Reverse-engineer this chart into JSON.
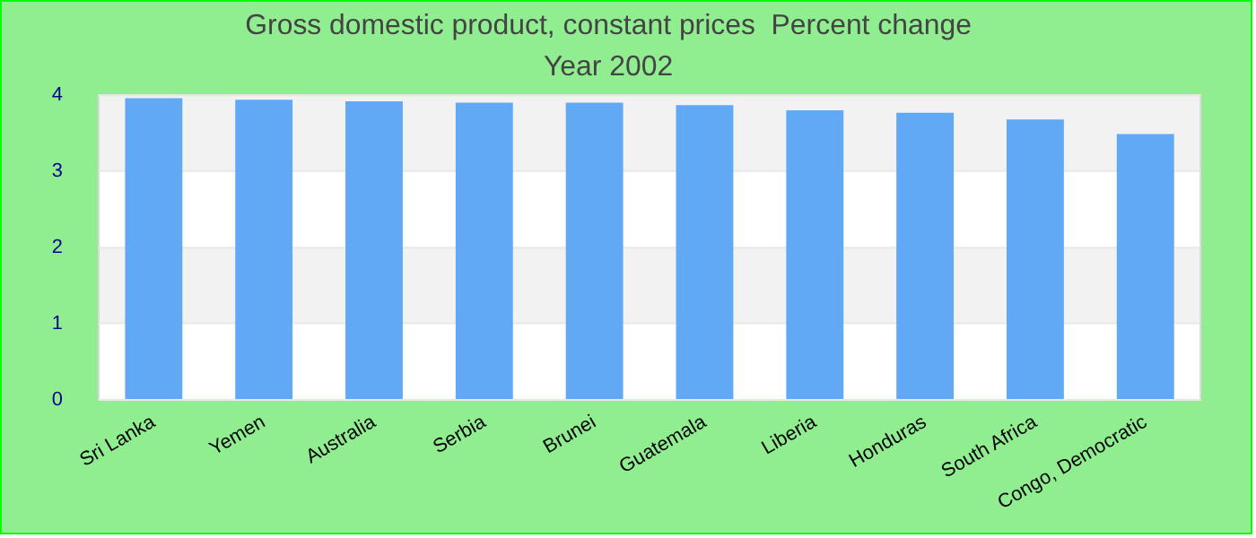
{
  "chart_data": {
    "type": "bar",
    "title": "Gross domestic product, constant prices  Percent change",
    "subtitle": "Year 2002",
    "categories": [
      "Sri Lanka",
      "Yemen",
      "Australia",
      "Serbia",
      "Brunei",
      "Guatemala",
      "Liberia",
      "Honduras",
      "South Africa",
      "Congo, Democratic"
    ],
    "values": [
      3.96,
      3.94,
      3.92,
      3.9,
      3.9,
      3.87,
      3.8,
      3.77,
      3.68,
      3.49
    ],
    "color": "#61a9f5",
    "ylim": [
      0,
      4
    ],
    "yticks": [
      0,
      1,
      2,
      3,
      4
    ],
    "grid": "y",
    "legend": false
  }
}
